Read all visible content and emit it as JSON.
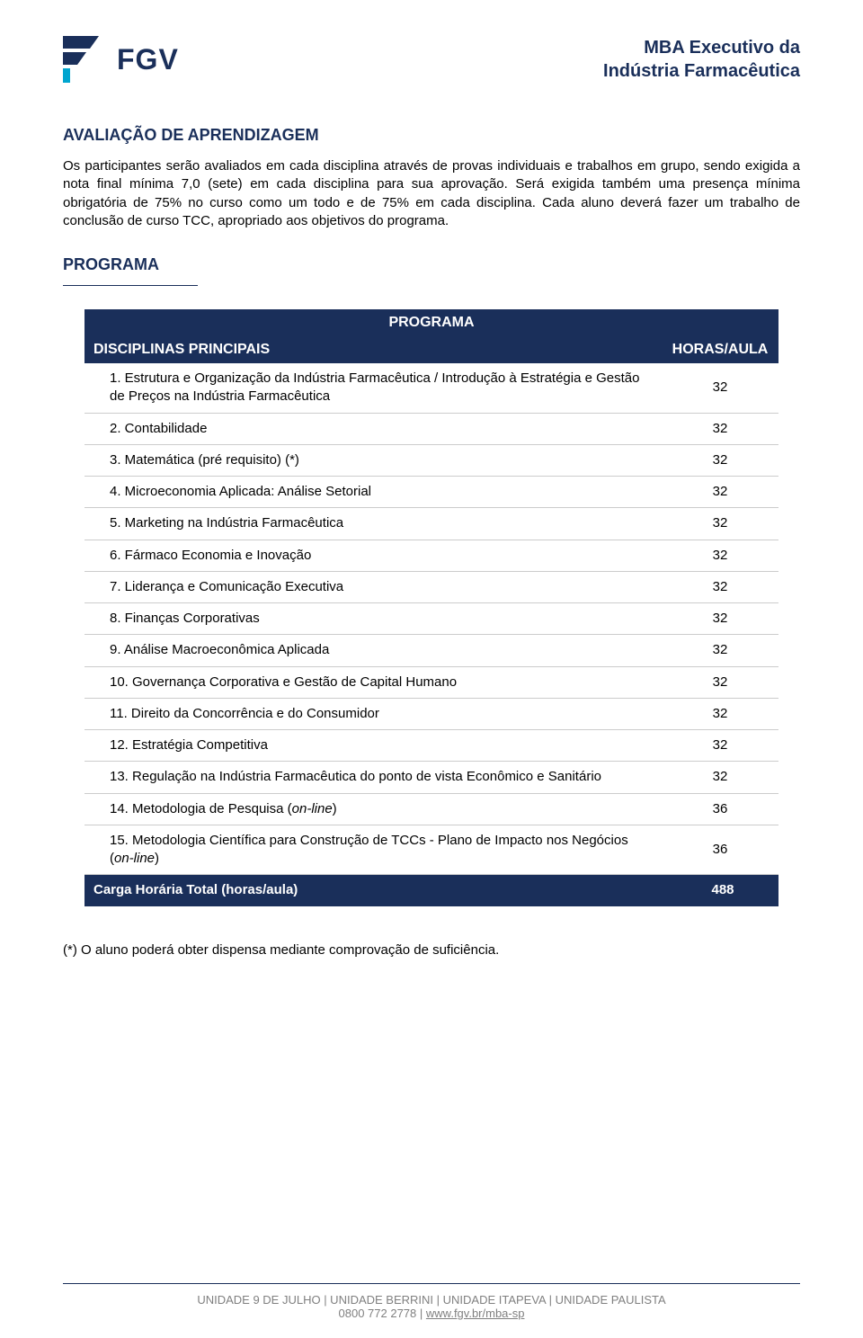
{
  "colors": {
    "brand_navy": "#1a2f5a",
    "brand_cyan": "#00a5cf",
    "text": "#000000",
    "grid": "#cccccc",
    "footer_text": "#808080",
    "background": "#ffffff"
  },
  "header": {
    "logo_text": "FGV",
    "title_line1": "MBA Executivo da",
    "title_line2": "Indústria Farmacêutica"
  },
  "section_eval": {
    "title": "AVALIAÇÃO DE APRENDIZAGEM",
    "body": "Os participantes serão avaliados em cada disciplina através de provas individuais e trabalhos em grupo, sendo exigida a nota final mínima 7,0 (sete) em cada disciplina para sua aprovação. Será exigida também uma presença mínima obrigatória de 75% no curso como um todo e de 75% em cada disciplina. Cada aluno deverá fazer um trabalho de conclusão de curso TCC, apropriado aos objetivos do programa."
  },
  "section_program": {
    "title": "PROGRAMA",
    "table_title": "PROGRAMA",
    "col_left": "DISCIPLINAS PRINCIPAIS",
    "col_right": "HORAS/AULA",
    "rows": [
      {
        "n": "1.",
        "label": "Estrutura e Organização da Indústria Farmacêutica / Introdução à Estratégia e Gestão de Preços na Indústria Farmacêutica",
        "hours": "32"
      },
      {
        "n": "2.",
        "label": "Contabilidade",
        "hours": "32"
      },
      {
        "n": "3.",
        "label": "Matemática (pré requisito) (*)",
        "hours": "32"
      },
      {
        "n": "4.",
        "label": "Microeconomia Aplicada: Análise Setorial",
        "hours": "32"
      },
      {
        "n": "5.",
        "label": "Marketing na Indústria Farmacêutica",
        "hours": "32"
      },
      {
        "n": "6.",
        "label": "Fármaco Economia e Inovação",
        "hours": "32"
      },
      {
        "n": "7.",
        "label": "Liderança e Comunicação Executiva",
        "hours": "32"
      },
      {
        "n": "8.",
        "label": "Finanças Corporativas",
        "hours": "32"
      },
      {
        "n": "9.",
        "label": "Análise Macroeconômica Aplicada",
        "hours": "32"
      },
      {
        "n": "10.",
        "label": "Governança Corporativa e Gestão de Capital Humano",
        "hours": "32"
      },
      {
        "n": "11.",
        "label": "Direito da Concorrência e do Consumidor",
        "hours": "32"
      },
      {
        "n": "12.",
        "label": "Estratégia Competitiva",
        "hours": "32"
      },
      {
        "n": "13.",
        "label": "Regulação na Indústria Farmacêutica do ponto de vista Econômico e Sanitário",
        "hours": "32"
      },
      {
        "n": "14.",
        "label_pre": "Metodologia de Pesquisa (",
        "label_italic": "on-line",
        "label_post": ")",
        "hours": "36"
      },
      {
        "n": "15.",
        "label_pre": "Metodologia Científica para Construção de TCCs - Plano de Impacto nos Negócios (",
        "label_italic": "on-line",
        "label_post": ")",
        "hours": "36"
      }
    ],
    "total_label": "Carga Horária Total (horas/aula)",
    "total_hours": "488"
  },
  "footnote": "(*) O aluno poderá obter dispensa mediante comprovação de suficiência.",
  "footer": {
    "units": "UNIDADE 9 DE JULHO | UNIDADE BERRINI | UNIDADE ITAPEVA | UNIDADE PAULISTA",
    "phone": "0800 772 2778",
    "sep": " | ",
    "link": "www.fgv.br/mba-sp"
  }
}
